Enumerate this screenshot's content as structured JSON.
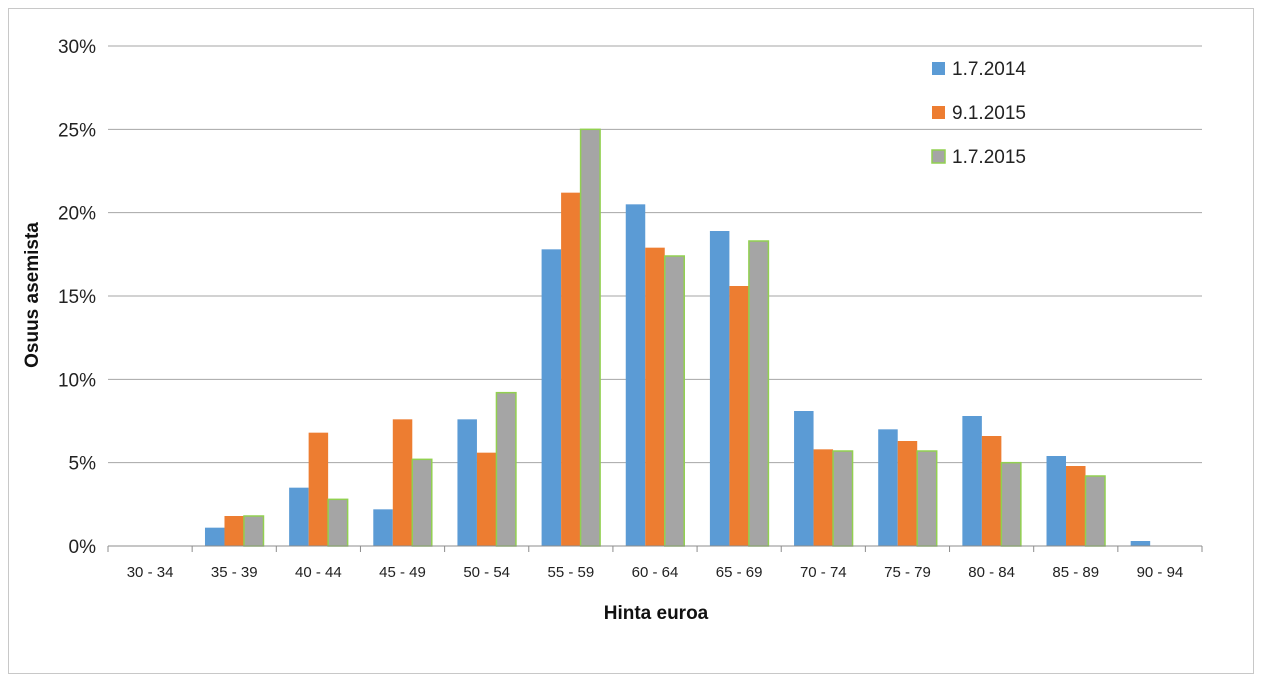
{
  "chart_data": {
    "type": "bar",
    "title": "",
    "xlabel": "Hinta euroa",
    "ylabel": "Osuus asemista",
    "ylim": [
      0,
      30
    ],
    "yticks": [
      "0%",
      "5%",
      "10%",
      "15%",
      "20%",
      "25%",
      "30%"
    ],
    "grid": true,
    "legend_position": "top-right",
    "categories": [
      "30 - 34",
      "35 - 39",
      "40 - 44",
      "45 - 49",
      "50 - 54",
      "55 - 59",
      "60 - 64",
      "65 - 69",
      "70 - 74",
      "75 - 79",
      "80 - 84",
      "85 - 89",
      "90 - 94"
    ],
    "series": [
      {
        "name": "1.7.2014",
        "color": "#5b9bd5",
        "values": [
          0,
          1.1,
          3.5,
          2.2,
          7.6,
          17.8,
          20.5,
          18.9,
          8.1,
          7.0,
          7.8,
          5.4,
          0.3
        ]
      },
      {
        "name": "9.1.2015",
        "color": "#ed7d31",
        "values": [
          0,
          1.8,
          6.8,
          7.6,
          5.6,
          21.2,
          17.9,
          15.6,
          5.8,
          6.3,
          6.6,
          4.8,
          0
        ]
      },
      {
        "name": "1.7.2015",
        "color": "#a5a5a5",
        "edge": "#92d050",
        "values": [
          0,
          1.8,
          2.8,
          5.2,
          9.2,
          25.0,
          17.4,
          18.3,
          5.7,
          5.7,
          5.0,
          4.2,
          0
        ]
      }
    ]
  }
}
